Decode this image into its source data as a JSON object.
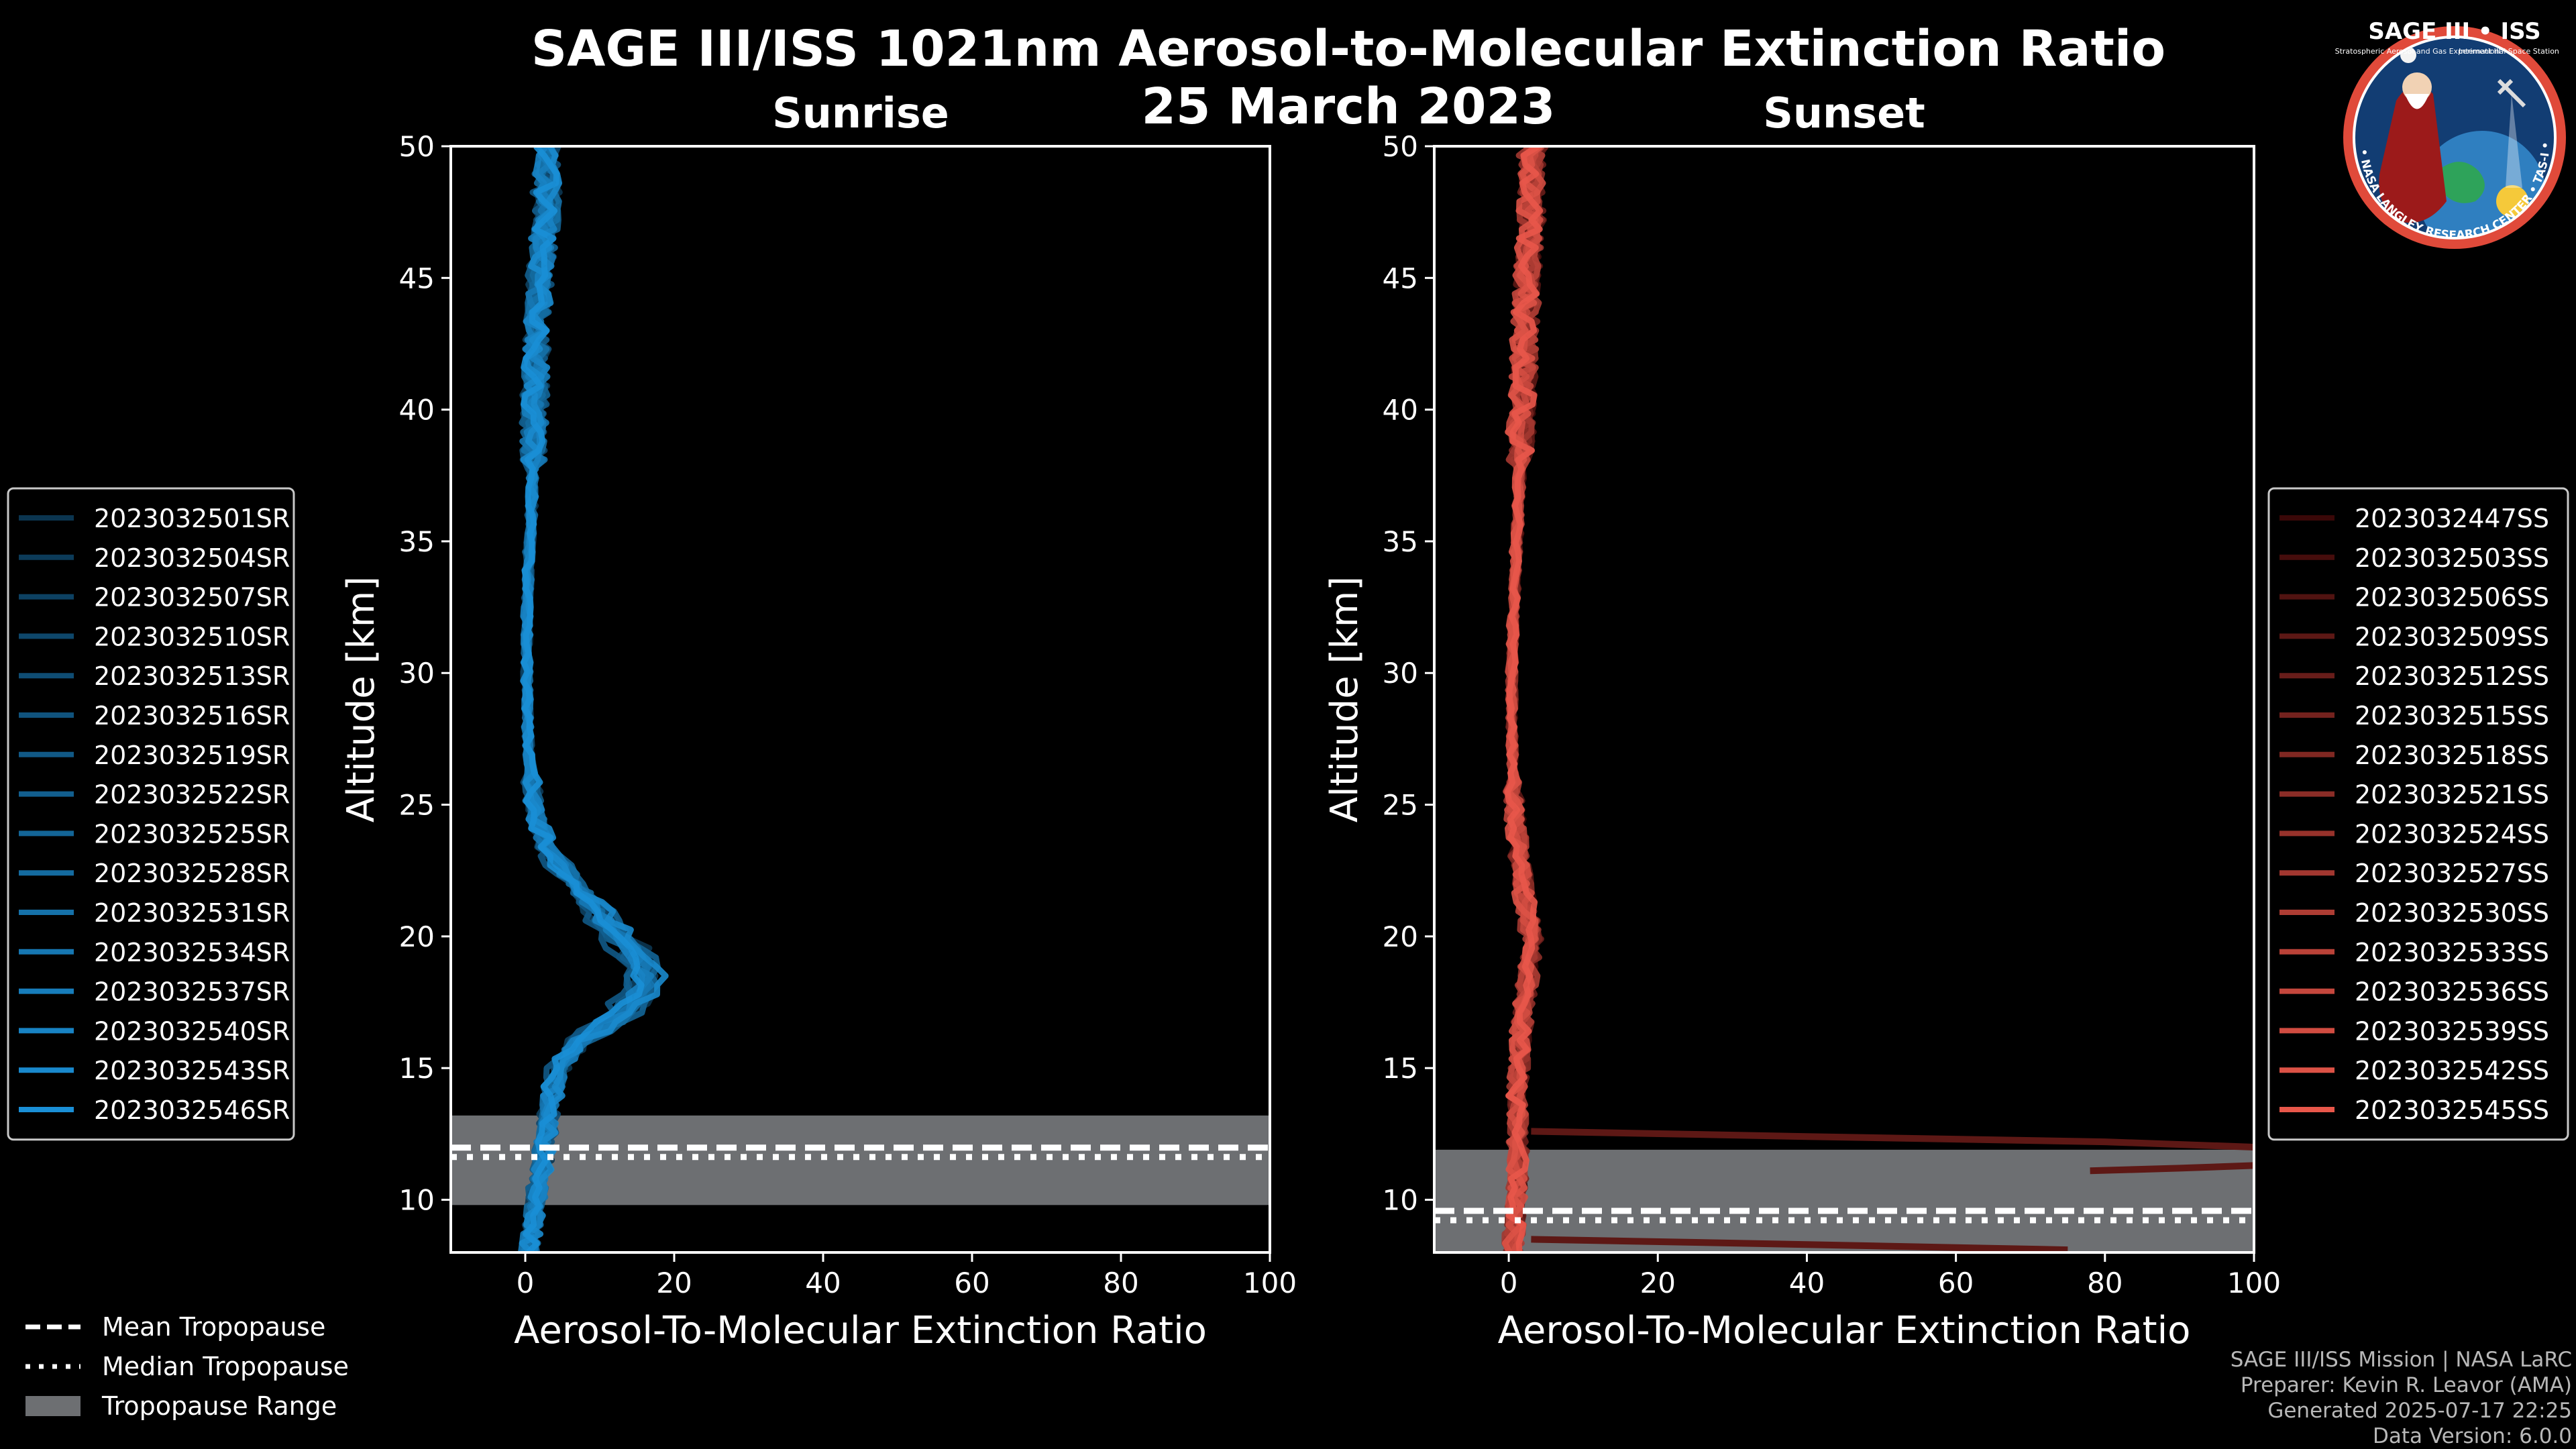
{
  "title": {
    "line1": "SAGE III/ISS 1021nm Aerosol-to-Molecular Extinction Ratio",
    "line2": "25 March 2023"
  },
  "logo": {
    "text": "SAGE III • ISS",
    "ring_text": "BALL • NASA LANGLEY RESEARCH CENTER • TAS-I • ESA",
    "subtitle": "Stratospheric Aerosol and Gas Experiment III",
    "station": "International Space Station"
  },
  "legend_tropopause": {
    "mean": "Mean Tropopause",
    "median": "Median Tropopause",
    "range": "Tropopause Range"
  },
  "credits": {
    "line1": "SAGE III/ISS Mission | NASA LaRC",
    "line2": "Preparer: Kevin R. Leavor (AMA)",
    "line3": "Generated 2025-07-17 22:25",
    "line4": "Data Version: 6.0.0"
  },
  "colors": {
    "background": "#000000",
    "sunrise_dark": "#0b3550",
    "sunrise_light": "#1a8fd6",
    "sunset_dark": "#3a0808",
    "sunset_light": "#e8574a",
    "tropopause_range": "#6d6f72",
    "axis": "#ffffff"
  },
  "chart_data": [
    {
      "type": "line",
      "panel": "sunrise",
      "title": "Sunrise",
      "xlabel": "Aerosol-To-Molecular Extinction Ratio",
      "ylabel": "Altitude [km]",
      "xlim": [
        -10,
        100
      ],
      "ylim": [
        8,
        50
      ],
      "xticks": [
        0,
        20,
        40,
        60,
        80,
        100
      ],
      "yticks": [
        10,
        15,
        20,
        25,
        30,
        35,
        40,
        45,
        50
      ],
      "tropopause": {
        "mean": 11.8,
        "median": 11.8,
        "range": [
          9.8,
          13.2
        ]
      },
      "base_profile": {
        "altitude": [
          8,
          9,
          10,
          11,
          12,
          13,
          14,
          15,
          16,
          16.5,
          17,
          17.5,
          18,
          18.5,
          19,
          19.5,
          20,
          20.5,
          21,
          21.5,
          22,
          22.5,
          23,
          23.5,
          24,
          24.5,
          25,
          26,
          27,
          28,
          30,
          32,
          34,
          36,
          38,
          40,
          42,
          44,
          46,
          48,
          50
        ],
        "ratio": [
          0.5,
          1.0,
          1.5,
          2.0,
          2.5,
          3.0,
          3.5,
          4.5,
          7.0,
          10.0,
          12.5,
          14.5,
          15.5,
          15.8,
          15.2,
          14.0,
          12.5,
          11.0,
          9.5,
          8.0,
          6.5,
          5.0,
          3.8,
          2.8,
          2.0,
          1.5,
          1.1,
          0.8,
          0.5,
          0.3,
          0.2,
          0.2,
          0.4,
          0.8,
          1.0,
          1.2,
          1.5,
          1.8,
          2.2,
          2.8,
          3.0
        ]
      },
      "series": [
        {
          "name": "2023032501SR"
        },
        {
          "name": "2023032504SR"
        },
        {
          "name": "2023032507SR"
        },
        {
          "name": "2023032510SR"
        },
        {
          "name": "2023032513SR"
        },
        {
          "name": "2023032516SR"
        },
        {
          "name": "2023032519SR"
        },
        {
          "name": "2023032522SR"
        },
        {
          "name": "2023032525SR"
        },
        {
          "name": "2023032528SR"
        },
        {
          "name": "2023032531SR"
        },
        {
          "name": "2023032534SR"
        },
        {
          "name": "2023032537SR"
        },
        {
          "name": "2023032540SR"
        },
        {
          "name": "2023032543SR"
        },
        {
          "name": "2023032546SR"
        }
      ]
    },
    {
      "type": "line",
      "panel": "sunset",
      "title": "Sunset",
      "xlabel": "Aerosol-To-Molecular Extinction Ratio",
      "ylabel": "Altitude [km]",
      "xlim": [
        -10,
        100
      ],
      "ylim": [
        8,
        50
      ],
      "xticks": [
        0,
        20,
        40,
        60,
        80,
        100
      ],
      "yticks": [
        10,
        15,
        20,
        25,
        30,
        35,
        40,
        45,
        50
      ],
      "tropopause": {
        "mean": 9.4,
        "median": 9.4,
        "range": [
          8,
          11.9
        ]
      },
      "base_profile": {
        "altitude": [
          8,
          9,
          10,
          11,
          12,
          13,
          14,
          15,
          16,
          17,
          18,
          19,
          19.5,
          20,
          21,
          22,
          23,
          24,
          25,
          26,
          28,
          30,
          32,
          34,
          36,
          38,
          40,
          42,
          44,
          46,
          48,
          50
        ],
        "ratio": [
          0.5,
          0.8,
          1.0,
          1.2,
          1.3,
          1.3,
          1.2,
          1.3,
          1.5,
          1.8,
          2.2,
          2.8,
          3.0,
          3.0,
          2.5,
          1.8,
          1.3,
          1.0,
          0.8,
          0.6,
          0.4,
          0.4,
          0.6,
          0.9,
          1.2,
          1.5,
          1.8,
          2.0,
          2.3,
          2.6,
          3.0,
          3.2
        ]
      },
      "outliers": [
        {
          "altitude": [
            12.6,
            12.4,
            12.2,
            12.0
          ],
          "ratio": [
            3,
            40,
            80,
            100
          ]
        },
        {
          "altitude": [
            11.1,
            11.2,
            11.3
          ],
          "ratio": [
            78,
            90,
            100
          ]
        },
        {
          "altitude": [
            8.5,
            8.3,
            8.1
          ],
          "ratio": [
            3,
            40,
            75
          ]
        }
      ],
      "series": [
        {
          "name": "2023032447SS"
        },
        {
          "name": "2023032503SS"
        },
        {
          "name": "2023032506SS"
        },
        {
          "name": "2023032509SS"
        },
        {
          "name": "2023032512SS"
        },
        {
          "name": "2023032515SS"
        },
        {
          "name": "2023032518SS"
        },
        {
          "name": "2023032521SS"
        },
        {
          "name": "2023032524SS"
        },
        {
          "name": "2023032527SS"
        },
        {
          "name": "2023032530SS"
        },
        {
          "name": "2023032533SS"
        },
        {
          "name": "2023032536SS"
        },
        {
          "name": "2023032539SS"
        },
        {
          "name": "2023032542SS"
        },
        {
          "name": "2023032545SS"
        }
      ]
    }
  ]
}
